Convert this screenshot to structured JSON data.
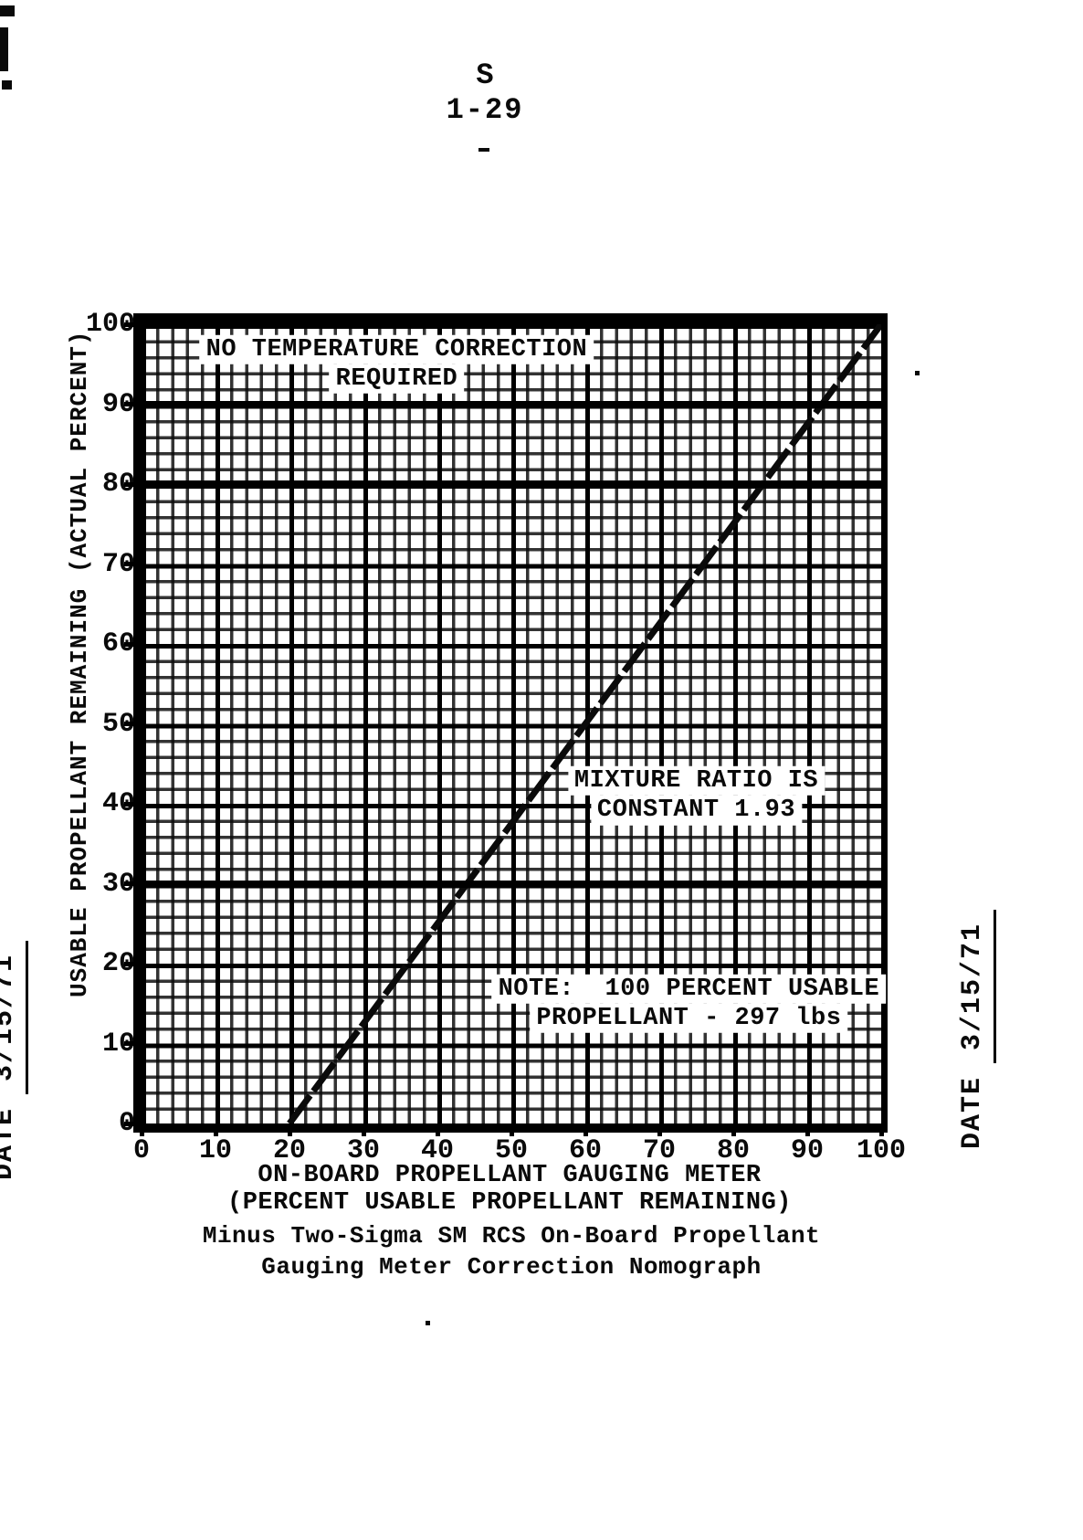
{
  "page": {
    "header": {
      "line1": "S",
      "line2": "1-29"
    },
    "left_margin": {
      "date_label": "DATE",
      "date_value": "3/15/71"
    },
    "right_margin": {
      "date_label": "DATE",
      "date_value": "3/15/71"
    }
  },
  "chart_data": {
    "type": "line",
    "title_line1": "Minus Two-Sigma SM RCS On-Board Propellant",
    "title_line2": "Gauging Meter Correction Nomograph",
    "xlabel_line1": "ON-BOARD PROPELLANT GAUGING METER",
    "xlabel_line2": "(PERCENT USABLE PROPELLANT REMAINING)",
    "ylabel": "USABLE PROPELLANT REMAINING (ACTUAL PERCENT)",
    "xlim": [
      0,
      100
    ],
    "ylim": [
      0,
      100
    ],
    "x_ticks": [
      0,
      10,
      20,
      30,
      40,
      50,
      60,
      70,
      80,
      90,
      100
    ],
    "y_ticks": [
      0,
      10,
      20,
      30,
      40,
      50,
      60,
      70,
      80,
      90,
      100
    ],
    "grid": "on",
    "minor_grid_step": 2,
    "major_grid_step": 10,
    "emphasized_y_gridlines": [
      90,
      80,
      30
    ],
    "series": [
      {
        "name": "minus-two-sigma gauging meter correction line",
        "points": [
          [
            20,
            0
          ],
          [
            100,
            100
          ]
        ]
      }
    ],
    "annotations": [
      {
        "lines": [
          "NO TEMPERATURE CORRECTION",
          "REQUIRED"
        ],
        "x": 34.5,
        "y": 95
      },
      {
        "lines": [
          "MIXTURE RATIO IS",
          "CONSTANT 1.93"
        ],
        "x": 75,
        "y": 41
      },
      {
        "lines": [
          "NOTE:  100 PERCENT USABLE",
          "PROPELLANT - 297 lbs"
        ],
        "x": 74,
        "y": 15
      }
    ]
  }
}
